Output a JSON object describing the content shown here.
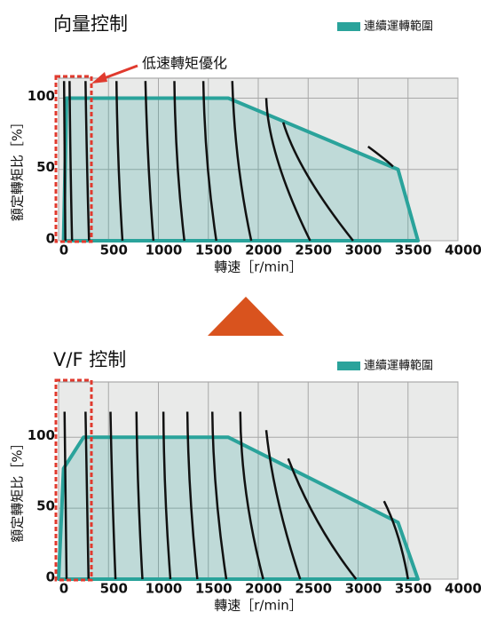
{
  "chart_data": [
    {
      "type": "area",
      "title": "向量控制",
      "annotation": "低速轉矩優化",
      "x_label": "轉速［r/min］",
      "y_label": "額定轉矩比［%］",
      "xlim": [
        0,
        4000
      ],
      "ylim": [
        0,
        114
      ],
      "xticks": [
        0,
        500,
        1000,
        1500,
        2000,
        2500,
        3000,
        3500,
        4000
      ],
      "yticks": [
        0,
        50,
        100
      ],
      "grid": true,
      "series": [
        {
          "name": "連續運轉範圍",
          "color": "#2aa39b",
          "x": [
            50,
            80,
            1700,
            3400,
            3600
          ],
          "values": [
            0,
            100,
            100,
            50,
            0
          ]
        }
      ],
      "curve_color": "#111111",
      "torque_curves": [
        {
          "x": [
            55,
            60,
            68
          ],
          "values": [
            112,
            55,
            0
          ]
        },
        {
          "x": [
            110,
            120,
            135
          ],
          "values": [
            112,
            55,
            0
          ]
        },
        {
          "x": [
            270,
            285,
            305
          ],
          "values": [
            112,
            55,
            0
          ]
        },
        {
          "x": [
            580,
            600,
            640
          ],
          "values": [
            112,
            55,
            0
          ]
        },
        {
          "x": [
            870,
            900,
            950
          ],
          "values": [
            112,
            55,
            0
          ]
        },
        {
          "x": [
            1160,
            1190,
            1260
          ],
          "values": [
            112,
            55,
            0
          ]
        },
        {
          "x": [
            1450,
            1490,
            1580
          ],
          "values": [
            112,
            55,
            0
          ]
        },
        {
          "x": [
            1740,
            1800,
            1930
          ],
          "values": [
            112,
            55,
            0
          ]
        },
        {
          "x": [
            2080,
            2200,
            2520
          ],
          "values": [
            100,
            55,
            0
          ]
        },
        {
          "x": [
            2250,
            2500,
            2950
          ],
          "values": [
            83,
            45,
            0
          ]
        },
        {
          "x": [
            3100,
            3250,
            3350
          ],
          "values": [
            66,
            58,
            52
          ]
        }
      ]
    },
    {
      "type": "area",
      "title": "V/F 控制",
      "x_label": "轉速［r/min］",
      "y_label": "額定轉矩比［%］",
      "xlim": [
        0,
        4000
      ],
      "ylim": [
        0,
        139
      ],
      "xticks": [
        0,
        500,
        1000,
        1500,
        2000,
        2500,
        3000,
        3500,
        4000
      ],
      "yticks": [
        0,
        50,
        100
      ],
      "grid": true,
      "series": [
        {
          "name": "連續運轉範圍",
          "color": "#2aa39b",
          "x": [
            0,
            50,
            250,
            1700,
            3400,
            3600
          ],
          "values": [
            0,
            78,
            100,
            100,
            40,
            0
          ]
        }
      ],
      "curve_color": "#111111",
      "torque_curves": [
        {
          "x": [
            60,
            70,
            80
          ],
          "values": [
            118,
            60,
            0
          ]
        },
        {
          "x": [
            270,
            285,
            300
          ],
          "values": [
            118,
            60,
            0
          ]
        },
        {
          "x": [
            520,
            540,
            570
          ],
          "values": [
            118,
            60,
            0
          ]
        },
        {
          "x": [
            780,
            800,
            840
          ],
          "values": [
            118,
            60,
            0
          ]
        },
        {
          "x": [
            1050,
            1070,
            1120
          ],
          "values": [
            118,
            60,
            0
          ]
        },
        {
          "x": [
            1290,
            1320,
            1390
          ],
          "values": [
            118,
            60,
            0
          ]
        },
        {
          "x": [
            1540,
            1580,
            1680
          ],
          "values": [
            118,
            60,
            0
          ]
        },
        {
          "x": [
            1820,
            1880,
            2050
          ],
          "values": [
            118,
            60,
            0
          ]
        },
        {
          "x": [
            2080,
            2200,
            2420
          ],
          "values": [
            105,
            55,
            0
          ]
        },
        {
          "x": [
            2300,
            2600,
            2980
          ],
          "values": [
            85,
            40,
            0
          ]
        },
        {
          "x": [
            3260,
            3400,
            3500
          ],
          "values": [
            55,
            30,
            0
          ]
        }
      ]
    }
  ]
}
